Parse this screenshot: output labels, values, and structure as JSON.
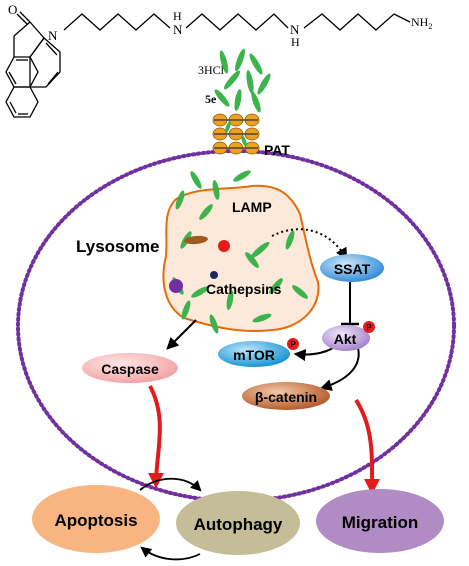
{
  "compound": {
    "atom_o": "O",
    "atom_n": "N",
    "atom_h1": "H",
    "atom_n1": "N",
    "atom_h2": "H",
    "atom_n2": "N",
    "terminal": "NH",
    "terminal_sub": "2",
    "salt": "3HCl",
    "code": "5e"
  },
  "labels": {
    "pat": "PAT",
    "lamp": "LAMP",
    "lysosome": "Lysosome",
    "cathepsins": "Cathepsins",
    "ssat": "SSAT",
    "akt": "Akt",
    "mtor": "mTOR",
    "beta_catenin": "β-catenin",
    "caspase": "Caspase",
    "phospho": "P"
  },
  "outcomes": {
    "apoptosis": "Apoptosis",
    "autophagy": "Autophagy",
    "migration": "Migration"
  },
  "colors": {
    "membrane": "#7030a0",
    "granule": "#3cb44b",
    "lysosome_fill": "#fde9d9",
    "lysosome_edge": "#e46c0a",
    "ssat": "#3d9be9",
    "mtor": "#1ba1e2",
    "akt": "#b48fd8",
    "beta_catenin": "#c0602c",
    "caspase": "#f7b5b5",
    "apoptosis": "#f9b581",
    "autophagy": "#c4bd97",
    "migration": "#b08bc4",
    "red_arrow": "#e31b1b",
    "phospho": "#e31b1b"
  }
}
